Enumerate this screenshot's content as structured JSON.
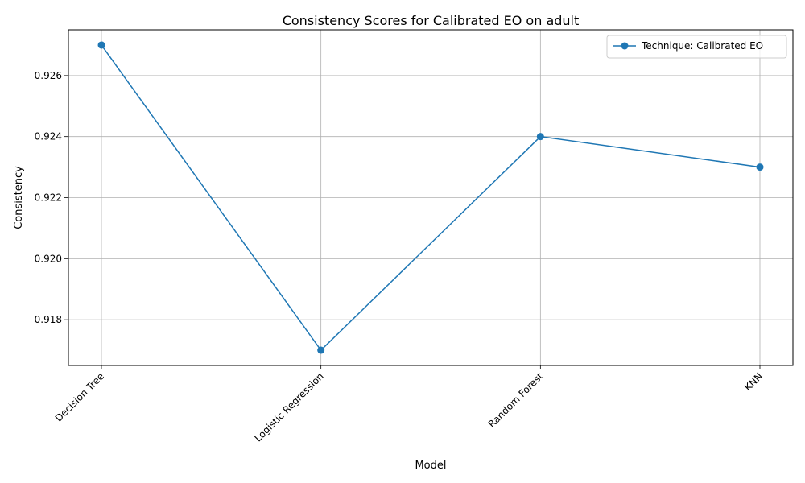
{
  "chart_data": {
    "type": "line",
    "title": "Consistency Scores for Calibrated EO on adult",
    "xlabel": "Model",
    "ylabel": "Consistency",
    "categories": [
      "Decision Tree",
      "Logistic Regression",
      "Random Forest",
      "KNN"
    ],
    "series": [
      {
        "name": "Technique: Calibrated EO",
        "values": [
          0.927,
          0.917,
          0.924,
          0.923
        ],
        "color": "#1f77b4",
        "marker": "circle"
      }
    ],
    "yticks": [
      "0.918",
      "0.920",
      "0.922",
      "0.924",
      "0.926"
    ],
    "ylim": [
      0.9165,
      0.9275
    ],
    "grid": true,
    "legend_position": "top-right",
    "x_tick_rotation_deg": 45
  }
}
